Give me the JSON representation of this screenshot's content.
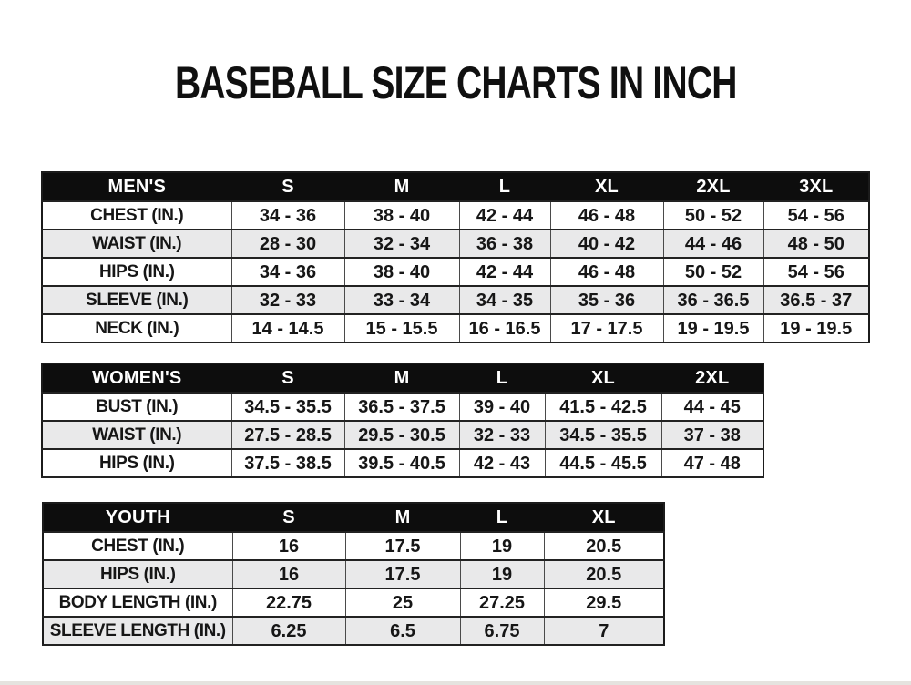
{
  "page": {
    "title": "BASEBALL SIZE CHARTS IN INCH"
  },
  "tables": [
    {
      "id": "mens",
      "header": [
        "MEN'S",
        "S",
        "M",
        "L",
        "XL",
        "2XL",
        "3XL"
      ],
      "rows": [
        [
          "CHEST (IN.)",
          "34 - 36",
          "38 - 40",
          "42 - 44",
          "46 - 48",
          "50 - 52",
          "54 - 56"
        ],
        [
          "WAIST (IN.)",
          "28 - 30",
          "32 - 34",
          "36 - 38",
          "40 - 42",
          "44 - 46",
          "48 - 50"
        ],
        [
          "HIPS (IN.)",
          "34 - 36",
          "38 - 40",
          "42 - 44",
          "46 - 48",
          "50 - 52",
          "54 - 56"
        ],
        [
          "SLEEVE (IN.)",
          "32 - 33",
          "33 - 34",
          "34 - 35",
          "35 - 36",
          "36 - 36.5",
          "36.5 - 37"
        ],
        [
          "NECK (IN.)",
          "14 - 14.5",
          "15 - 15.5",
          "16 - 16.5",
          "17 - 17.5",
          "19 - 19.5",
          "19 - 19.5"
        ]
      ]
    },
    {
      "id": "womens",
      "header": [
        "WOMEN'S",
        "S",
        "M",
        "L",
        "XL",
        "2XL"
      ],
      "rows": [
        [
          "BUST (IN.)",
          "34.5 - 35.5",
          "36.5 - 37.5",
          "39 - 40",
          "41.5 - 42.5",
          "44 - 45"
        ],
        [
          "WAIST (IN.)",
          "27.5 - 28.5",
          "29.5 - 30.5",
          "32 - 33",
          "34.5 - 35.5",
          "37 - 38"
        ],
        [
          "HIPS (IN.)",
          "37.5 - 38.5",
          "39.5 - 40.5",
          "42 - 43",
          "44.5 - 45.5",
          "47 - 48"
        ]
      ]
    },
    {
      "id": "youth",
      "header": [
        "YOUTH",
        "S",
        "M",
        "L",
        "XL"
      ],
      "rows": [
        [
          "CHEST (IN.)",
          "16",
          "17.5",
          "19",
          "20.5"
        ],
        [
          "HIPS (IN.)",
          "16",
          "17.5",
          "19",
          "20.5"
        ],
        [
          "BODY LENGTH (IN.)",
          "22.75",
          "25",
          "27.25",
          "29.5"
        ],
        [
          "SLEEVE LENGTH (IN.)",
          "6.25",
          "6.5",
          "6.75",
          "7"
        ]
      ]
    }
  ],
  "colors": {
    "header_bg": "#0d0d0d",
    "header_text": "#ffffff",
    "row_stripe": "#e9e9ea",
    "border": "#222222",
    "text": "#161616"
  }
}
